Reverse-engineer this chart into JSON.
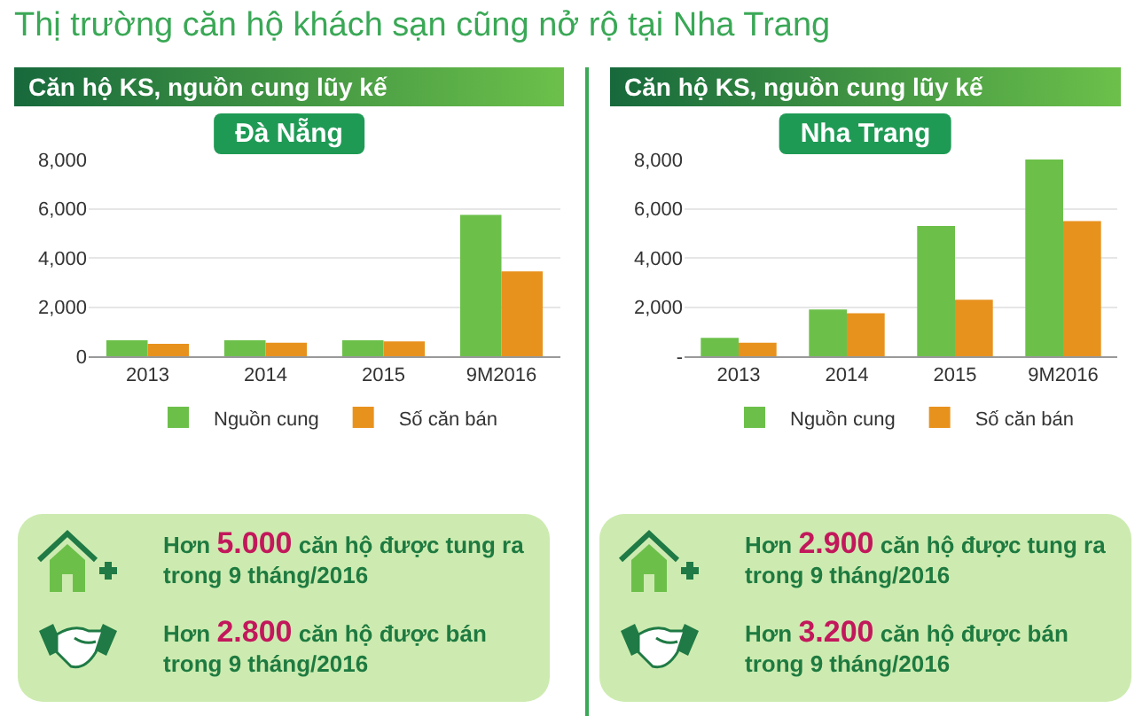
{
  "chart_data": [
    {
      "type": "other",
      "title": "Thị trường căn hộ khách sạn cũng nở rộ tại Nha Trang"
    },
    {
      "type": "bar",
      "title": "Căn hộ KS, nguồn cung lũy kế",
      "subtitle": "Đà Nẵng",
      "categories": [
        "2013",
        "2014",
        "2015",
        "9M2016"
      ],
      "series": [
        {
          "name": "Nguồn cung",
          "color": "#6cc04a",
          "values": [
            650,
            650,
            650,
            5750
          ]
        },
        {
          "name": "Số căn bán",
          "color": "#e8921e",
          "values": [
            500,
            550,
            600,
            3450
          ]
        }
      ],
      "ylim": [
        0,
        8000
      ],
      "yticks": [
        {
          "value": 0,
          "label": "0"
        },
        {
          "value": 2000,
          "label": "2,000"
        },
        {
          "value": 4000,
          "label": "4,000"
        },
        {
          "value": 6000,
          "label": "6,000"
        },
        {
          "value": 8000,
          "label": "8,000"
        }
      ],
      "grid": "y",
      "legend": "bottom"
    },
    {
      "type": "bar",
      "title": "Căn hộ KS, nguồn cung lũy kế",
      "subtitle": "Nha Trang",
      "categories": [
        "2013",
        "2014",
        "2015",
        "9M2016"
      ],
      "series": [
        {
          "name": "Nguồn cung",
          "color": "#6cc04a",
          "values": [
            750,
            1900,
            5300,
            8000
          ]
        },
        {
          "name": "Số căn bán",
          "color": "#e8921e",
          "values": [
            550,
            1750,
            2300,
            5500
          ]
        }
      ],
      "ylim": [
        0,
        8000
      ],
      "yticks": [
        {
          "value": 0,
          "label": "-"
        },
        {
          "value": 2000,
          "label": "2,000"
        },
        {
          "value": 4000,
          "label": "4,000"
        },
        {
          "value": 6000,
          "label": "6,000"
        },
        {
          "value": 8000,
          "label": "8,000"
        }
      ],
      "grid": "y",
      "legend": "bottom"
    },
    {
      "type": "other",
      "annotations": [
        "Hơn 5.000 căn hộ được tung ra trong 9 tháng/2016",
        "Hơn 2.800 căn hộ được bán trong 9 tháng/2016"
      ]
    },
    {
      "type": "other",
      "annotations": [
        "Hơn 2.900 căn hộ được tung ra trong 9 tháng/2016",
        "Hơn 3.200 căn hộ được bán trong 9 tháng/2016"
      ]
    }
  ]
}
